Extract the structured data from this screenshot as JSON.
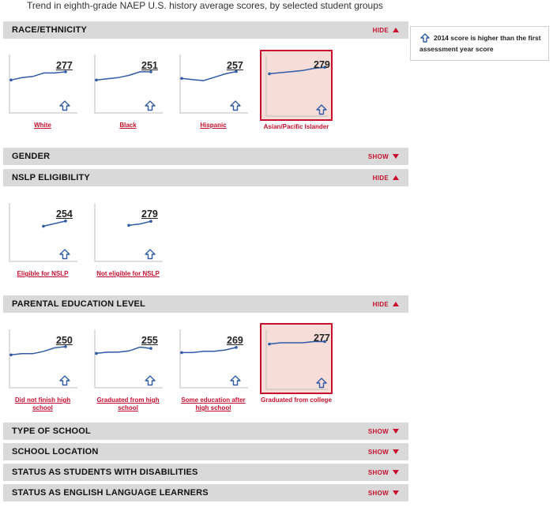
{
  "caption": "Trend in eighth-grade NAEP U.S. history average scores, by selected student groups",
  "legend": {
    "icon": "up-arrow-icon",
    "text": "2014 score is higher than the first assessment year score"
  },
  "colors": {
    "accent": "#c8102e",
    "line": "#2f5aa6",
    "highlight_bg": "#f6ddd8",
    "bar_bg": "#d9d9d9"
  },
  "sections": [
    {
      "label": "RACE/ETHNICITY",
      "toggle": "HIDE"
    },
    {
      "label": "GENDER",
      "toggle": "SHOW"
    },
    {
      "label": "NSLP ELIGIBILITY",
      "toggle": "HIDE"
    },
    {
      "label": "PARENTAL EDUCATION LEVEL",
      "toggle": "HIDE"
    },
    {
      "label": "TYPE OF SCHOOL",
      "toggle": "SHOW"
    },
    {
      "label": "SCHOOL LOCATION",
      "toggle": "SHOW"
    },
    {
      "label": "STATUS AS STUDENTS WITH DISABILITIES",
      "toggle": "SHOW"
    },
    {
      "label": "STATUS AS ENGLISH LANGUAGE LEARNERS",
      "toggle": "SHOW"
    }
  ],
  "chart_data": [
    {
      "type": "line",
      "group": "RACE/ETHNICITY",
      "name": "White",
      "score": "277",
      "trend": "higher",
      "highlight": false,
      "values": [
        270,
        272,
        273,
        276,
        276,
        277
      ]
    },
    {
      "type": "line",
      "group": "RACE/ETHNICITY",
      "name": "Black",
      "score": "251",
      "trend": "higher",
      "highlight": false,
      "values": [
        244,
        245,
        246,
        248,
        251,
        251
      ]
    },
    {
      "type": "line",
      "group": "RACE/ETHNICITY",
      "name": "Hispanic",
      "score": "257",
      "trend": "higher",
      "highlight": false,
      "values": [
        251,
        250,
        249,
        252,
        255,
        257
      ]
    },
    {
      "type": "line",
      "group": "RACE/ETHNICITY",
      "name": "Asian/Pacific Islander",
      "score": "279",
      "trend": "higher",
      "highlight": true,
      "values": [
        273,
        274,
        275,
        276,
        278,
        279
      ]
    },
    {
      "type": "line",
      "group": "NSLP ELIGIBILITY",
      "name": "Eligible for NSLP",
      "score": "254",
      "trend": "higher",
      "highlight": false,
      "values": [
        250,
        252,
        254
      ]
    },
    {
      "type": "line",
      "group": "NSLP ELIGIBILITY",
      "name": "Not eligible for NSLP",
      "score": "279",
      "trend": "higher",
      "highlight": false,
      "values": [
        276,
        277,
        279
      ]
    },
    {
      "type": "line",
      "group": "PARENTAL EDUCATION LEVEL",
      "name": "Did not finish high school",
      "score": "250",
      "trend": "higher",
      "highlight": false,
      "values": [
        243,
        244,
        244,
        246,
        249,
        250
      ]
    },
    {
      "type": "line",
      "group": "PARENTAL EDUCATION LEVEL",
      "name": "Graduated from high school",
      "score": "255",
      "trend": "higher",
      "highlight": false,
      "values": [
        251,
        252,
        252,
        253,
        256,
        255
      ]
    },
    {
      "type": "line",
      "group": "PARENTAL EDUCATION LEVEL",
      "name": "Some education after high school",
      "score": "269",
      "trend": "higher",
      "highlight": false,
      "values": [
        265,
        265,
        266,
        266,
        267,
        269
      ]
    },
    {
      "type": "line",
      "group": "PARENTAL EDUCATION LEVEL",
      "name": "Graduated from college",
      "score": "277",
      "trend": "higher",
      "highlight": true,
      "values": [
        275,
        276,
        276,
        276,
        277,
        277
      ]
    }
  ]
}
